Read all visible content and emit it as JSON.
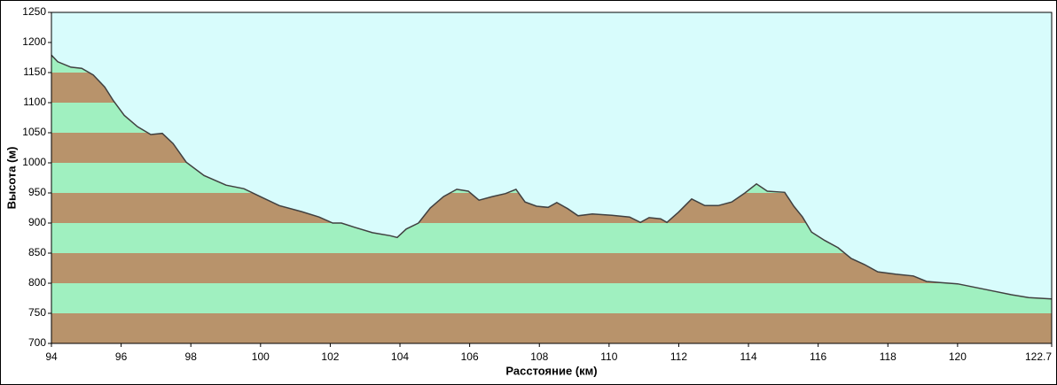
{
  "chart_data": {
    "type": "area",
    "x_label": "Расстояние   (км)",
    "y_label": "Высота (м)",
    "x": [
      94,
      94.18,
      94.56,
      94.87,
      95.2,
      95.53,
      95.78,
      96.09,
      96.47,
      96.85,
      97.18,
      97.49,
      97.87,
      98.38,
      99.01,
      99.52,
      100.03,
      100.54,
      101.18,
      101.68,
      102.07,
      102.32,
      102.7,
      103.21,
      103.72,
      103.92,
      104.18,
      104.53,
      104.87,
      105.25,
      105.63,
      105.96,
      106.27,
      106.65,
      107.03,
      107.33,
      107.59,
      107.92,
      108.25,
      108.5,
      108.81,
      109.11,
      109.52,
      110.08,
      110.59,
      110.9,
      111.15,
      111.48,
      111.66,
      111.99,
      112.37,
      112.75,
      113.13,
      113.52,
      113.9,
      114.23,
      114.54,
      115.04,
      115.3,
      115.55,
      115.81,
      116.19,
      116.57,
      116.95,
      117.33,
      117.71,
      118.22,
      118.73,
      119.11,
      119.5,
      120.0,
      120.52,
      121.02,
      121.53,
      122.04,
      122.7
    ],
    "values": [
      1179,
      1168,
      1159,
      1157,
      1146,
      1126,
      1103,
      1079,
      1060,
      1047,
      1049,
      1032,
      1001,
      979,
      963,
      957,
      943,
      929,
      919,
      910,
      900,
      900,
      893,
      884,
      879,
      876,
      890,
      900,
      925,
      944,
      956,
      953,
      938,
      944,
      949,
      956,
      935,
      928,
      926,
      934,
      924,
      912,
      915,
      913,
      910,
      901,
      909,
      907,
      901,
      918,
      940,
      929,
      929,
      935,
      950,
      965,
      953,
      951,
      928,
      910,
      885,
      871,
      859,
      841,
      831,
      819,
      815,
      812,
      803,
      801,
      799,
      793,
      787,
      781,
      776,
      774
    ],
    "xlim": [
      94,
      122.7
    ],
    "xticks": [
      94,
      96,
      98,
      100,
      102,
      104,
      106,
      108,
      110,
      112,
      114,
      116,
      118,
      120,
      122.7
    ],
    "ylim": [
      700,
      1250
    ],
    "yticks": [
      700,
      750,
      800,
      850,
      900,
      950,
      1000,
      1050,
      1100,
      1150,
      1200,
      1250
    ],
    "color": "#404040",
    "band_colors": [
      "#b8936b",
      "#a0f0c0"
    ],
    "background": "#d8fcfc"
  }
}
